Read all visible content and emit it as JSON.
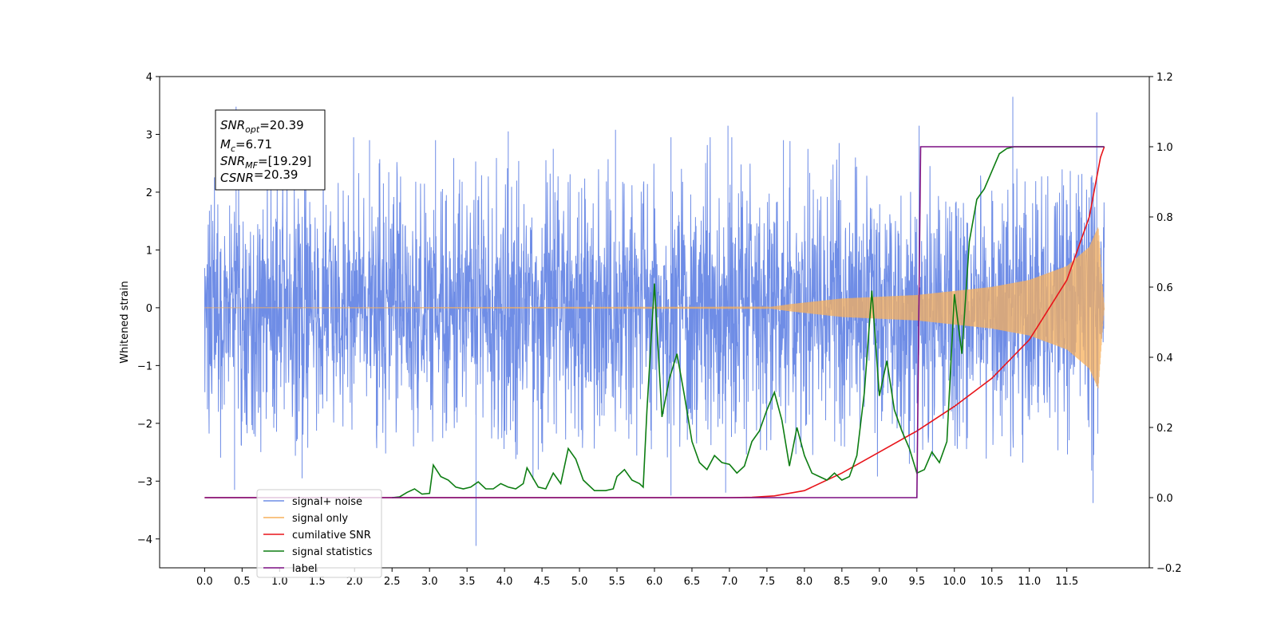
{
  "chart_data": {
    "type": "line",
    "title": "",
    "xlabel": "",
    "ylabel": "Whitened strain",
    "xlim": [
      -0.6,
      12.6
    ],
    "ylim": [
      -4.5,
      4.0
    ],
    "y2lim": [
      -0.2,
      1.2
    ],
    "grid": false,
    "legend_position": "lower-left",
    "x_ticks": [
      "0.0",
      "0.5",
      "1.0",
      "1.5",
      "2.0",
      "2.5",
      "3.0",
      "3.5",
      "4.0",
      "4.5",
      "5.0",
      "5.5",
      "6.0",
      "6.5",
      "7.0",
      "7.5",
      "8.0",
      "8.5",
      "9.0",
      "9.5",
      "10.0",
      "10.5",
      "11.0",
      "11.5"
    ],
    "y_ticks": [
      "4",
      "3",
      "2",
      "1",
      "0",
      "−1",
      "−2",
      "−3",
      "−4"
    ],
    "y2_ticks": [
      "1.2",
      "1.0",
      "0.8",
      "0.6",
      "0.4",
      "0.2",
      "0.0",
      "−0.2"
    ],
    "annotation": {
      "lines": [
        {
          "base": "SNR",
          "sub": "opt",
          "value": "=20.39"
        },
        {
          "base": "M",
          "sub": "c",
          "value": "=6.71"
        },
        {
          "base": "SNR",
          "sub": "MF",
          "value": "=[19.29]"
        },
        {
          "base": "CSNR",
          "sub": "",
          "value": "=20.39"
        }
      ]
    },
    "series": [
      {
        "name": "signal+ noise",
        "color": "#6f8de6",
        "axis": "left",
        "style": "noise",
        "x_range": [
          0.0,
          12.0
        ],
        "envelope_core": 1.3,
        "peaks": [
          {
            "x": 0.42,
            "y": 3.48
          },
          {
            "x": 1.35,
            "y": 2.55
          },
          {
            "x": 2.2,
            "y": 2.9
          },
          {
            "x": 3.08,
            "y": 2.9
          },
          {
            "x": 4.05,
            "y": 3.05
          },
          {
            "x": 4.65,
            "y": 2.75
          },
          {
            "x": 5.48,
            "y": 3.08
          },
          {
            "x": 6.22,
            "y": 2.95
          },
          {
            "x": 6.98,
            "y": 3.15
          },
          {
            "x": 7.72,
            "y": 2.9
          },
          {
            "x": 8.68,
            "y": 2.6
          },
          {
            "x": 9.53,
            "y": 3.15
          },
          {
            "x": 10.78,
            "y": 3.65
          },
          {
            "x": 11.9,
            "y": 3.38
          },
          {
            "x": 3.62,
            "y": -4.12
          },
          {
            "x": 0.4,
            "y": -3.15
          },
          {
            "x": 1.3,
            "y": -2.95
          },
          {
            "x": 6.22,
            "y": -3.25
          },
          {
            "x": 6.95,
            "y": -3.2
          },
          {
            "x": 11.85,
            "y": -3.38
          },
          {
            "x": 4.45,
            "y": -2.8
          },
          {
            "x": 9.4,
            "y": -2.7
          }
        ]
      },
      {
        "name": "signal only",
        "color": "#f7b05c",
        "axis": "left",
        "style": "chirp",
        "x_range": [
          0.0,
          12.0
        ],
        "amp_points": [
          [
            0.0,
            0.0
          ],
          [
            7.5,
            0.005
          ],
          [
            7.8,
            0.06
          ],
          [
            8.5,
            0.16
          ],
          [
            9.5,
            0.22
          ],
          [
            10.5,
            0.36
          ],
          [
            11.0,
            0.48
          ],
          [
            11.5,
            0.72
          ],
          [
            11.8,
            1.05
          ],
          [
            11.92,
            1.4
          ],
          [
            11.98,
            0.3
          ],
          [
            12.0,
            0.0
          ]
        ]
      },
      {
        "name": "cumilative SNR",
        "color": "#e8141a",
        "axis": "right",
        "points": [
          [
            0.0,
            0.0
          ],
          [
            7.0,
            0.0
          ],
          [
            7.3,
            0.001
          ],
          [
            7.6,
            0.005
          ],
          [
            8.0,
            0.02
          ],
          [
            8.5,
            0.07
          ],
          [
            9.0,
            0.13
          ],
          [
            9.5,
            0.19
          ],
          [
            10.0,
            0.26
          ],
          [
            10.5,
            0.34
          ],
          [
            11.0,
            0.45
          ],
          [
            11.5,
            0.62
          ],
          [
            11.8,
            0.8
          ],
          [
            11.95,
            0.97
          ],
          [
            12.0,
            1.0
          ]
        ]
      },
      {
        "name": "signal statistics",
        "color": "#0d7d12",
        "axis": "right",
        "points": [
          [
            2.5,
            0.0
          ],
          [
            2.6,
            0.002
          ],
          [
            2.7,
            0.015
          ],
          [
            2.8,
            0.025
          ],
          [
            2.9,
            0.01
          ],
          [
            3.0,
            0.012
          ],
          [
            3.05,
            0.093
          ],
          [
            3.15,
            0.06
          ],
          [
            3.25,
            0.05
          ],
          [
            3.35,
            0.03
          ],
          [
            3.45,
            0.025
          ],
          [
            3.55,
            0.03
          ],
          [
            3.65,
            0.045
          ],
          [
            3.75,
            0.025
          ],
          [
            3.85,
            0.025
          ],
          [
            3.95,
            0.04
          ],
          [
            4.05,
            0.03
          ],
          [
            4.15,
            0.025
          ],
          [
            4.25,
            0.04
          ],
          [
            4.3,
            0.085
          ],
          [
            4.45,
            0.03
          ],
          [
            4.55,
            0.025
          ],
          [
            4.65,
            0.07
          ],
          [
            4.75,
            0.04
          ],
          [
            4.85,
            0.14
          ],
          [
            4.95,
            0.11
          ],
          [
            5.05,
            0.05
          ],
          [
            5.2,
            0.02
          ],
          [
            5.35,
            0.02
          ],
          [
            5.45,
            0.025
          ],
          [
            5.5,
            0.06
          ],
          [
            5.6,
            0.08
          ],
          [
            5.7,
            0.05
          ],
          [
            5.8,
            0.04
          ],
          [
            5.85,
            0.03
          ],
          [
            5.9,
            0.25
          ],
          [
            6.0,
            0.61
          ],
          [
            6.1,
            0.23
          ],
          [
            6.2,
            0.34
          ],
          [
            6.3,
            0.41
          ],
          [
            6.4,
            0.29
          ],
          [
            6.5,
            0.16
          ],
          [
            6.6,
            0.1
          ],
          [
            6.7,
            0.08
          ],
          [
            6.8,
            0.12
          ],
          [
            6.9,
            0.1
          ],
          [
            7.0,
            0.095
          ],
          [
            7.1,
            0.07
          ],
          [
            7.2,
            0.09
          ],
          [
            7.3,
            0.16
          ],
          [
            7.4,
            0.19
          ],
          [
            7.5,
            0.25
          ],
          [
            7.6,
            0.3
          ],
          [
            7.7,
            0.22
          ],
          [
            7.8,
            0.09
          ],
          [
            7.9,
            0.2
          ],
          [
            8.0,
            0.12
          ],
          [
            8.1,
            0.07
          ],
          [
            8.2,
            0.06
          ],
          [
            8.3,
            0.05
          ],
          [
            8.4,
            0.07
          ],
          [
            8.5,
            0.05
          ],
          [
            8.6,
            0.06
          ],
          [
            8.7,
            0.12
          ],
          [
            8.8,
            0.3
          ],
          [
            8.9,
            0.59
          ],
          [
            9.0,
            0.29
          ],
          [
            9.1,
            0.39
          ],
          [
            9.2,
            0.25
          ],
          [
            9.3,
            0.19
          ],
          [
            9.4,
            0.14
          ],
          [
            9.5,
            0.07
          ],
          [
            9.6,
            0.08
          ],
          [
            9.7,
            0.13
          ],
          [
            9.8,
            0.1
          ],
          [
            9.9,
            0.16
          ],
          [
            10.0,
            0.58
          ],
          [
            10.1,
            0.41
          ],
          [
            10.2,
            0.73
          ],
          [
            10.3,
            0.85
          ],
          [
            10.4,
            0.88
          ],
          [
            10.5,
            0.93
          ],
          [
            10.6,
            0.98
          ],
          [
            10.7,
            0.995
          ],
          [
            10.8,
            1.0
          ],
          [
            11.0,
            1.0
          ],
          [
            11.5,
            1.0
          ],
          [
            12.0,
            1.0
          ]
        ]
      },
      {
        "name": "label",
        "color": "#7b0f82",
        "axis": "right",
        "points": [
          [
            0.0,
            0.0
          ],
          [
            9.5,
            0.0
          ],
          [
            9.55,
            1.0
          ],
          [
            12.0,
            1.0
          ]
        ]
      }
    ]
  }
}
